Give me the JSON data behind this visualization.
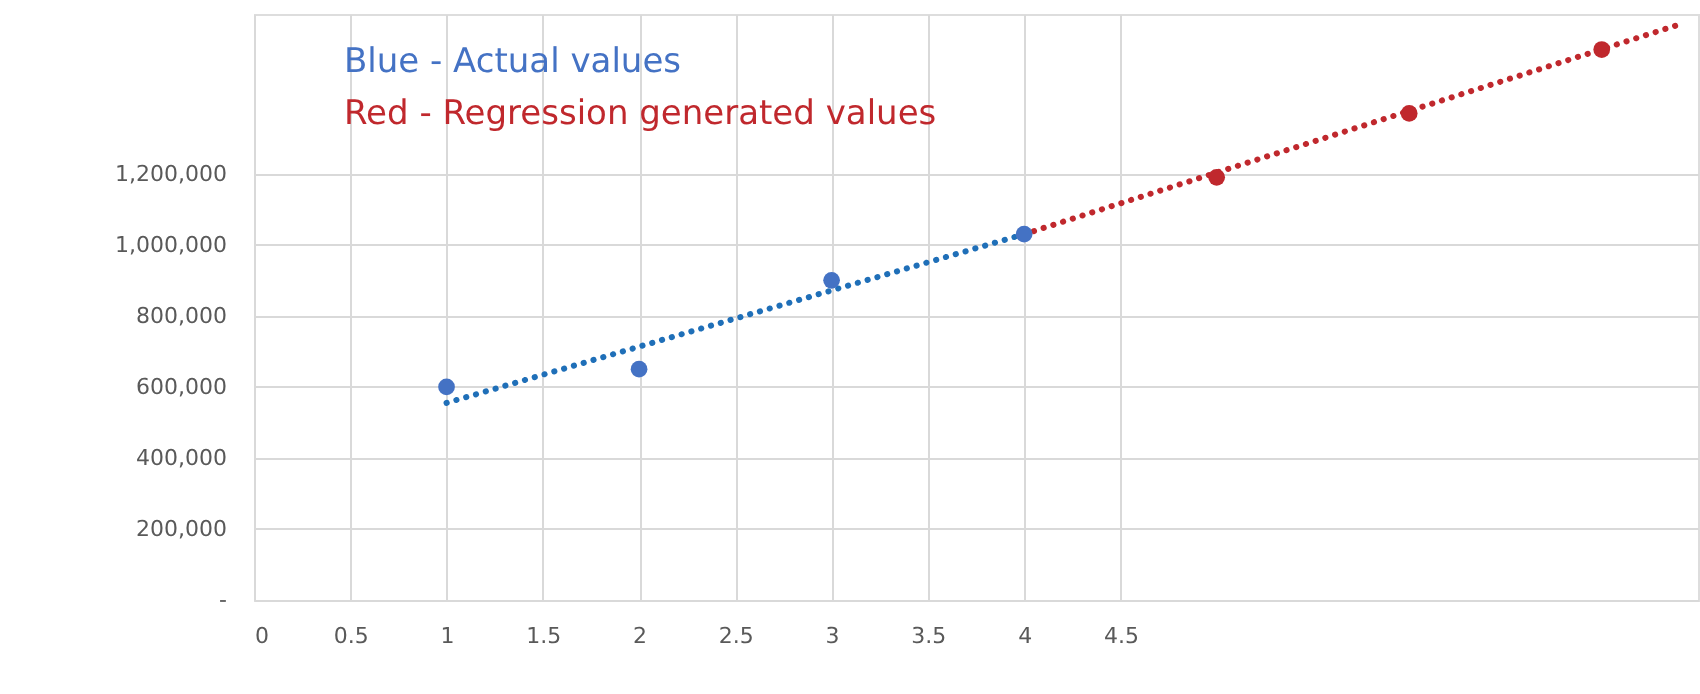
{
  "chart_data": {
    "type": "scatter",
    "annotations": [
      "Blue - Actual values",
      "Red - Regression generated values"
    ],
    "xlim": [
      0,
      7.5
    ],
    "xticks": [
      0,
      0.5,
      1,
      1.5,
      2,
      2.5,
      3,
      3.5,
      4,
      4.5
    ],
    "ylim": [
      0,
      1650000
    ],
    "yticks": [
      {
        "value": 0,
        "label": "-"
      },
      {
        "value": 200000,
        "label": "200,000"
      },
      {
        "value": 400000,
        "label": "400,000"
      },
      {
        "value": 600000,
        "label": "600,000"
      },
      {
        "value": 800000,
        "label": "800,000"
      },
      {
        "value": 1000000,
        "label": "1,000,000"
      },
      {
        "value": 1200000,
        "label": "1,200,000"
      }
    ],
    "grid": true,
    "marker": "circle",
    "series": [
      {
        "type": "line",
        "line_style": "dotted",
        "marker": "none",
        "color": "#1f6fb8",
        "x": [
          1,
          4
        ],
        "values": [
          555000,
          1030000
        ]
      },
      {
        "type": "line",
        "line_style": "dotted",
        "marker": "none",
        "color": "#c0282d",
        "x": [
          4,
          7.4
        ],
        "values": [
          1030000,
          1620000
        ]
      },
      {
        "color": "#4472c4",
        "x": [
          1,
          2,
          3,
          4
        ],
        "values": [
          600000,
          650000,
          900000,
          1030000
        ]
      },
      {
        "color": "#c0282d",
        "x": [
          5,
          6,
          7
        ],
        "values": [
          1190000,
          1370000,
          1550000
        ]
      }
    ]
  }
}
